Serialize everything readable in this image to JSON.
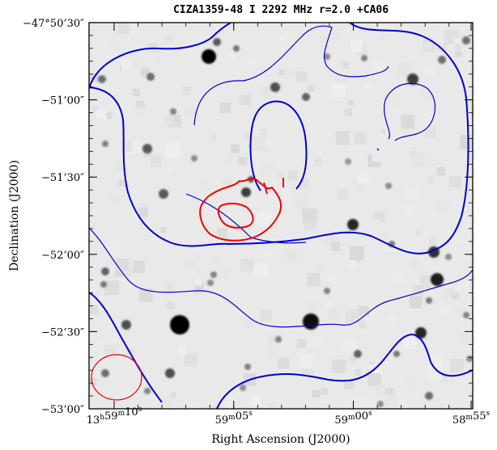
{
  "chart_data": {
    "type": "image",
    "title": "CIZA1359-48 I 2292 MHz r=2.0 +CA06",
    "xlabel": "Right Ascension (J2000)",
    "ylabel": "Declination (J2000)",
    "x_ticks": [
      {
        "label_h": "13",
        "label_m": "59",
        "label_s": "10",
        "ra_s": 10
      },
      {
        "label_h": "",
        "label_m": "59",
        "label_s": "05",
        "ra_s": 5
      },
      {
        "label_h": "",
        "label_m": "59",
        "label_s": "00",
        "ra_s": 0
      },
      {
        "label_h": "",
        "label_m": "58",
        "label_s": "55",
        "ra_s": -5
      }
    ],
    "y_ticks": [
      {
        "label": "−47°50’30″",
        "dec_arcsec": 0
      },
      {
        "label": "−51’00″",
        "dec_arcsec": -30
      },
      {
        "label": "−51’30″",
        "dec_arcsec": -60
      },
      {
        "label": "−52’00″",
        "dec_arcsec": -90
      },
      {
        "label": "−52’30″",
        "dec_arcsec": -120
      },
      {
        "label": "−53’00″",
        "dec_arcsec": -150
      }
    ],
    "contours": [
      {
        "color": "#0000cc",
        "lines": "blue"
      },
      {
        "color": "#ee0000",
        "lines": "red"
      }
    ],
    "beam_color": "#ee0000",
    "grid": false
  }
}
